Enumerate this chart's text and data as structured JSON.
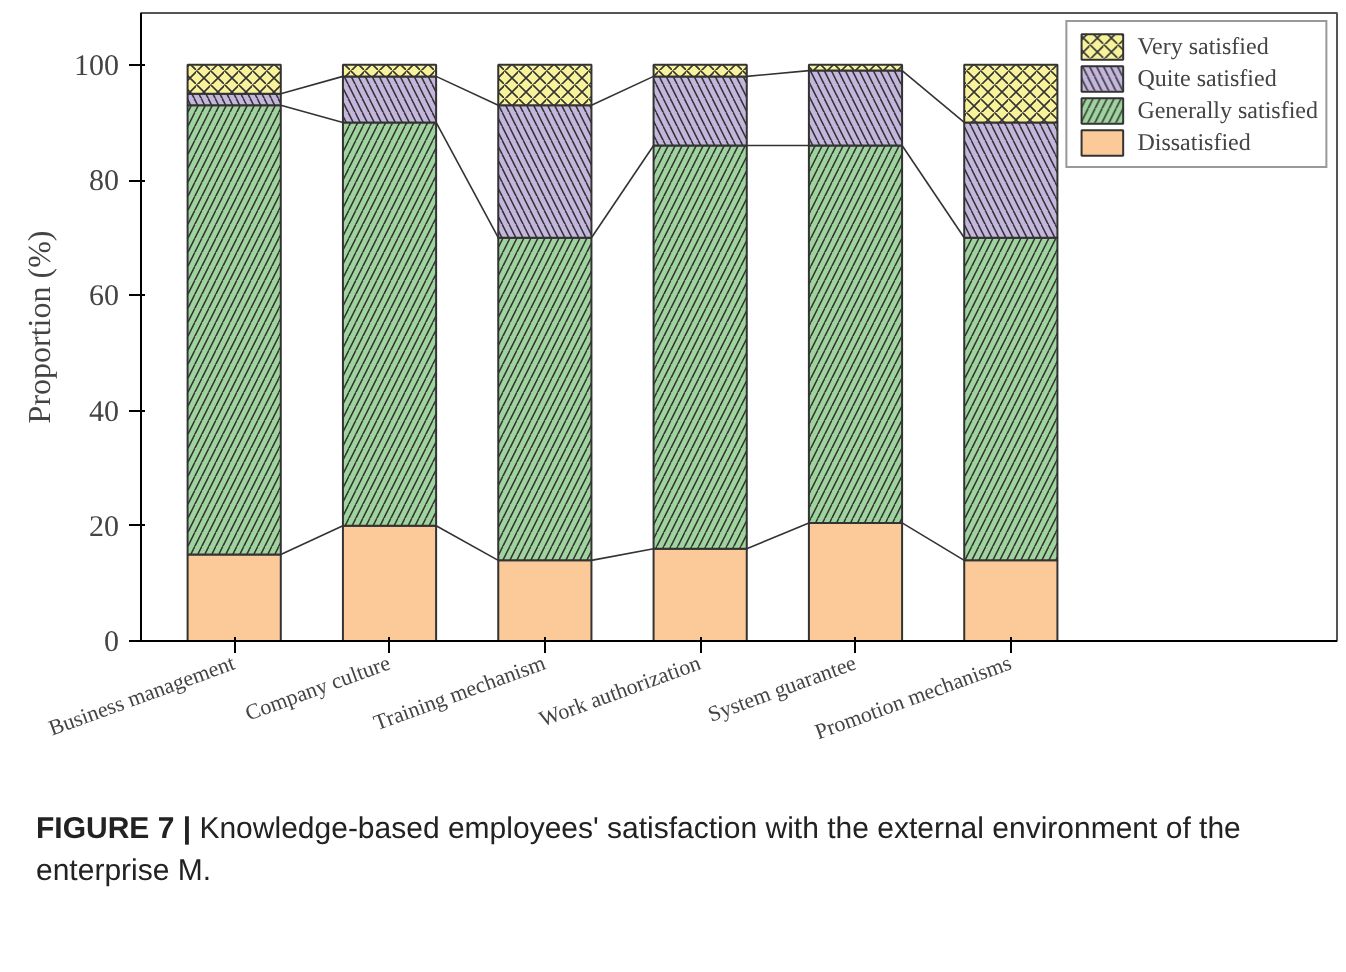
{
  "chart_data": {
    "type": "bar",
    "stacked": true,
    "ylabel": "Proportion (%)",
    "categories": [
      "Business management",
      "Company culture",
      "Training mechanism",
      "Work authorization",
      "System guarantee",
      "Promotion mechanisms"
    ],
    "series": [
      {
        "name": "Dissatisfied",
        "color": "#fcc998",
        "values": [
          15,
          20,
          14,
          16,
          20.5,
          14
        ]
      },
      {
        "name": "Generally satisfied",
        "color": "#9fd49f",
        "values": [
          78,
          70,
          56,
          70,
          65.5,
          56
        ]
      },
      {
        "name": "Quite satisfied",
        "color": "#c4b6dc",
        "values": [
          2,
          8,
          23,
          12,
          13,
          20
        ]
      },
      {
        "name": "Very satisfied",
        "color": "#f8f39a",
        "values": [
          5,
          2,
          7,
          2,
          1,
          10
        ]
      }
    ],
    "ylim": [
      0,
      109
    ],
    "yticks": [
      0,
      20,
      40,
      60,
      80,
      100
    ],
    "grid": false,
    "legend": "top right",
    "annotations": [
      "FIGURE 7 | Knowledge-based employees' satisfaction with the external environment of the enterprise M."
    ]
  }
}
